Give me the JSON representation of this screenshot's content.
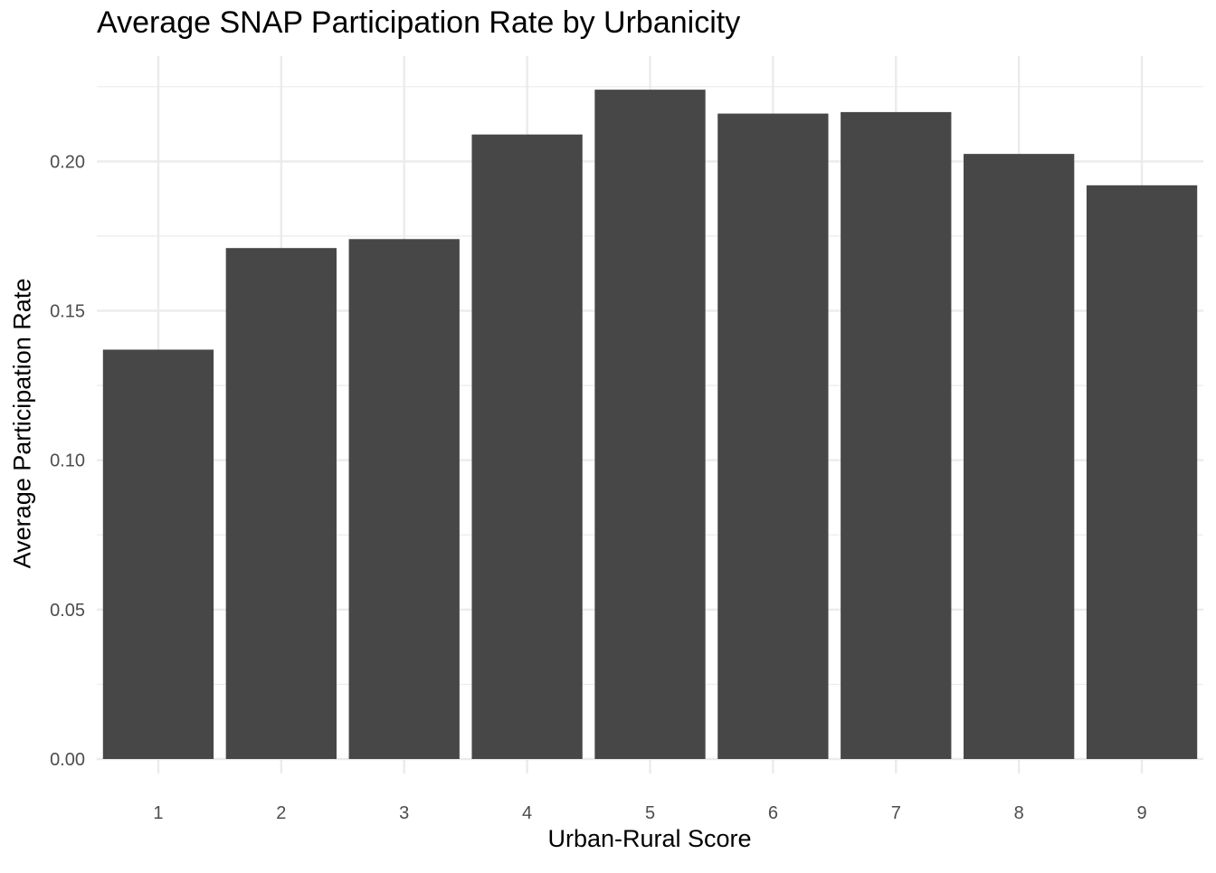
{
  "chart_data": {
    "type": "bar",
    "title": "Average SNAP Participation Rate by Urbanicity",
    "xlabel": "Urban-Rural Score",
    "ylabel": "Average Participation Rate",
    "categories": [
      "1",
      "2",
      "3",
      "4",
      "5",
      "6",
      "7",
      "8",
      "9"
    ],
    "values": [
      0.137,
      0.171,
      0.174,
      0.209,
      0.224,
      0.216,
      0.2165,
      0.2025,
      0.192
    ],
    "ylim": [
      0,
      0.23
    ],
    "yticks": [
      0.0,
      0.05,
      0.1,
      0.15,
      0.2
    ],
    "ytick_labels": [
      "0.00",
      "0.05",
      "0.10",
      "0.15",
      "0.20"
    ],
    "grid": true,
    "bar_color": "#474747",
    "grid_color": "#ebebeb"
  }
}
